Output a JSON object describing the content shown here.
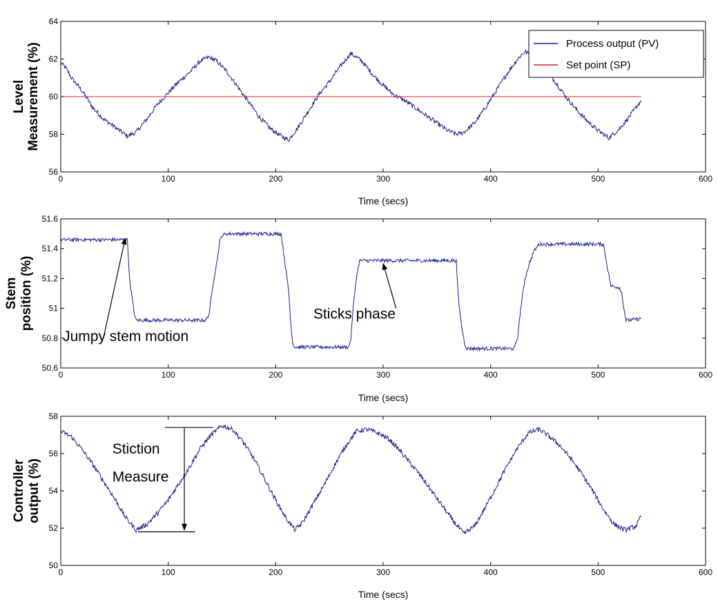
{
  "colors": {
    "pv": "#1a1a8c",
    "sp": "#cc2222",
    "axis": "#000000",
    "background": "#ffffff"
  },
  "chart_data": [
    {
      "type": "line",
      "title": "",
      "xlabel": "Time (secs)",
      "ylabel_lines": [
        "Level",
        "Measurement (%)"
      ],
      "xlim": [
        0,
        600
      ],
      "ylim": [
        56,
        64
      ],
      "xticks": [
        0,
        100,
        200,
        300,
        400,
        500,
        600
      ],
      "yticks": [
        56,
        58,
        60,
        62,
        64
      ],
      "grid": false,
      "legend_position": "top-right",
      "series": [
        {
          "name": "Process output (PV)",
          "color": "#1a1a8c",
          "noise": 0.12,
          "x": [
            0,
            5,
            10,
            20,
            30,
            40,
            50,
            62,
            70,
            80,
            90,
            100,
            110,
            120,
            130,
            138,
            145,
            155,
            165,
            175,
            185,
            195,
            205,
            212,
            220,
            230,
            240,
            250,
            260,
            270,
            280,
            290,
            300,
            310,
            320,
            330,
            340,
            350,
            360,
            368,
            375,
            385,
            395,
            405,
            415,
            425,
            432,
            440,
            450,
            460,
            470,
            480,
            490,
            500,
            510,
            520,
            530,
            540
          ],
          "y": [
            61.8,
            61.5,
            61.0,
            60.3,
            59.4,
            58.8,
            58.4,
            57.9,
            58.1,
            58.8,
            59.6,
            60.2,
            60.8,
            61.3,
            61.9,
            62.1,
            61.9,
            61.3,
            60.5,
            59.7,
            58.9,
            58.3,
            57.9,
            57.7,
            58.3,
            59.2,
            60.1,
            60.8,
            61.6,
            62.3,
            61.9,
            61.2,
            60.6,
            60.1,
            59.8,
            59.4,
            59.0,
            58.6,
            58.2,
            58.0,
            58.1,
            58.6,
            59.4,
            60.3,
            61.2,
            62.0,
            62.4,
            62.1,
            61.6,
            60.8,
            60.0,
            59.3,
            58.7,
            58.2,
            57.8,
            58.3,
            59.0,
            59.8
          ]
        },
        {
          "name": "Set point (SP)",
          "color": "#cc2222",
          "noise": 0,
          "x": [
            0,
            540
          ],
          "y": [
            60,
            60
          ]
        }
      ],
      "annotations": []
    },
    {
      "type": "line",
      "title": "",
      "xlabel": "Time (secs)",
      "ylabel_lines": [
        "Stem",
        "position (%)"
      ],
      "xlim": [
        0,
        600
      ],
      "ylim": [
        50.6,
        51.6
      ],
      "xticks": [
        0,
        100,
        200,
        300,
        400,
        500,
        600
      ],
      "yticks": [
        50.6,
        50.8,
        51,
        51.2,
        51.4,
        51.6
      ],
      "grid": false,
      "legend_position": "none",
      "series": [
        {
          "name": "",
          "color": "#1a1a8c",
          "noise": 0.012,
          "x": [
            0,
            62,
            64,
            68,
            70,
            100,
            135,
            138,
            142,
            145,
            148,
            150,
            155,
            205,
            208,
            212,
            214,
            216,
            218,
            268,
            270,
            272,
            275,
            278,
            300,
            330,
            368,
            370,
            373,
            376,
            378,
            410,
            422,
            425,
            428,
            432,
            436,
            440,
            445,
            505,
            508,
            512,
            520,
            522,
            524,
            526,
            528,
            540
          ],
          "y": [
            51.46,
            51.46,
            51.2,
            50.98,
            50.92,
            50.92,
            50.92,
            50.96,
            51.18,
            51.3,
            51.45,
            51.49,
            51.5,
            51.5,
            51.34,
            51.12,
            50.9,
            50.76,
            50.74,
            50.74,
            50.8,
            51.0,
            51.2,
            51.32,
            51.32,
            51.32,
            51.32,
            51.06,
            50.88,
            50.76,
            50.73,
            50.73,
            50.73,
            50.8,
            51.0,
            51.2,
            51.3,
            51.38,
            51.43,
            51.43,
            51.3,
            51.15,
            51.14,
            51.1,
            51.0,
            50.92,
            50.92,
            50.93
          ]
        }
      ],
      "annotations": [
        {
          "text": "Jumpy stem motion",
          "text_at": [
            2,
            50.78
          ],
          "arrow_from": [
            40,
            50.81
          ],
          "arrow_to": [
            60,
            51.47
          ]
        },
        {
          "text": "Sticks phase",
          "text_at": [
            235,
            50.93
          ],
          "arrow_from": [
            312,
            51.0
          ],
          "arrow_to": [
            300,
            51.3
          ]
        }
      ]
    },
    {
      "type": "line",
      "title": "",
      "xlabel": "Time (secs)",
      "ylabel_lines": [
        "Controller",
        "output (%)"
      ],
      "xlim": [
        0,
        600
      ],
      "ylim": [
        50,
        58
      ],
      "xticks": [
        0,
        100,
        200,
        300,
        400,
        500,
        600
      ],
      "yticks": [
        50,
        52,
        54,
        56,
        58
      ],
      "grid": false,
      "legend_position": "none",
      "series": [
        {
          "name": "",
          "color": "#1a1a8c",
          "noise": 0.13,
          "x": [
            0,
            10,
            20,
            30,
            40,
            50,
            60,
            70,
            80,
            90,
            100,
            110,
            120,
            130,
            140,
            150,
            160,
            170,
            180,
            190,
            200,
            210,
            218,
            225,
            235,
            245,
            255,
            265,
            275,
            285,
            295,
            305,
            315,
            325,
            335,
            345,
            355,
            365,
            375,
            385,
            395,
            405,
            415,
            425,
            435,
            445,
            455,
            465,
            475,
            485,
            495,
            505,
            515,
            525,
            535,
            540
          ],
          "y": [
            57.2,
            56.9,
            56.2,
            55.4,
            54.5,
            53.6,
            52.6,
            51.9,
            52.2,
            52.8,
            53.5,
            54.4,
            55.3,
            56.3,
            57.0,
            57.5,
            57.3,
            56.6,
            55.7,
            54.6,
            53.5,
            52.5,
            51.9,
            52.3,
            53.3,
            54.3,
            55.4,
            56.4,
            57.2,
            57.3,
            57.1,
            56.8,
            56.2,
            55.5,
            54.8,
            54.0,
            53.2,
            52.4,
            51.7,
            52.1,
            53.1,
            54.2,
            55.3,
            56.3,
            57.1,
            57.3,
            56.9,
            56.4,
            55.7,
            54.9,
            54.0,
            53.0,
            52.2,
            51.9,
            52.1,
            52.6
          ]
        }
      ],
      "annotations": [
        {
          "text": "Stiction",
          "text_at": [
            48,
            56.0
          ],
          "arrow_from": [
            115,
            57.4
          ],
          "arrow_to": [
            115,
            51.9
          ]
        },
        {
          "text": "Measure",
          "text_at": [
            48,
            54.5
          ]
        }
      ],
      "hlines": [
        {
          "x": [
            97,
            142
          ],
          "y": 57.4
        },
        {
          "x": [
            72,
            125
          ],
          "y": 51.8
        }
      ]
    }
  ]
}
